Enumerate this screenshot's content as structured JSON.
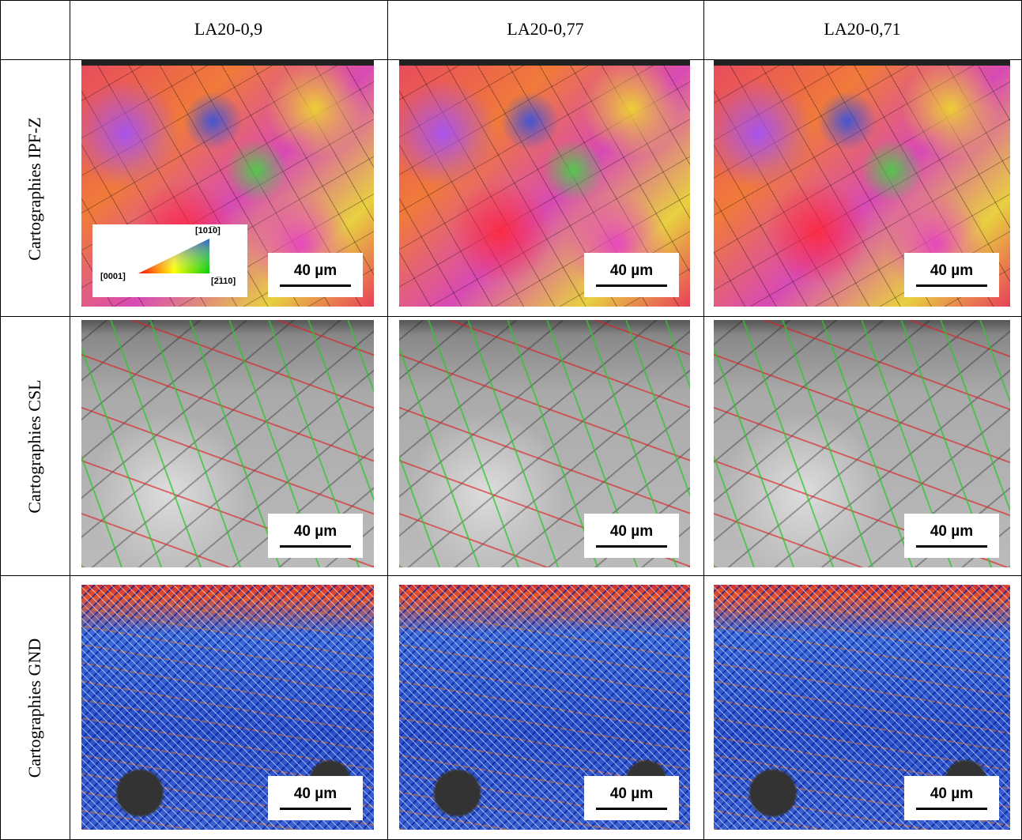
{
  "table": {
    "header": [
      "LA20-0,9",
      "LA20-0,77",
      "LA20-0,71"
    ],
    "rows": [
      {
        "label": "Cartographies IPF-Z",
        "scale_bars": [
          "40 µm",
          "40 µm",
          "40 µm"
        ]
      },
      {
        "label": "Cartographies CSL",
        "scale_bars": [
          "40 µm",
          "40 µm",
          "40 µm"
        ]
      },
      {
        "label": "Cartographies GND",
        "scale_bars": [
          "40 µm",
          "40 µm",
          "40 µm"
        ]
      }
    ],
    "ipf_legend": {
      "bottom_left": "[0001]",
      "top": "[101̅0]",
      "bottom_right": "[2̅110]"
    }
  }
}
